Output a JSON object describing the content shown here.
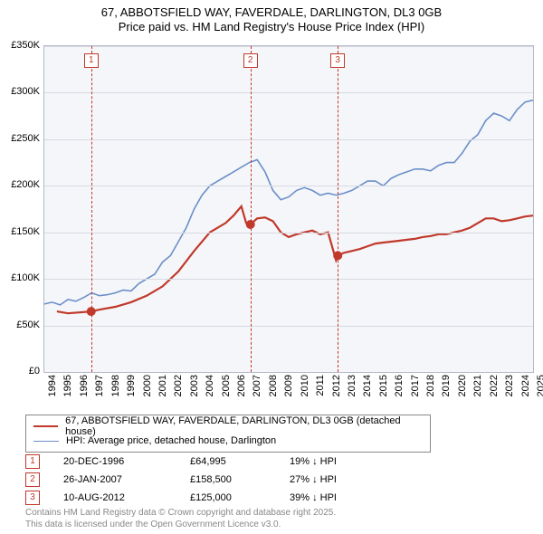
{
  "title": {
    "line1": "67, ABBOTSFIELD WAY, FAVERDALE, DARLINGTON, DL3 0GB",
    "line2": "Price paid vs. HM Land Registry's House Price Index (HPI)"
  },
  "chart": {
    "type": "line",
    "background_color": "#f5f6f9",
    "grid_color": "#d7dae2",
    "border_color": "#b5b9c8",
    "xlim": [
      1994,
      2025
    ],
    "ylim": [
      0,
      350000
    ],
    "ytick_step": 50000,
    "yticks": [
      "£0",
      "£50K",
      "£100K",
      "£150K",
      "£200K",
      "£250K",
      "£300K",
      "£350K"
    ],
    "xticks": [
      "1994",
      "1995",
      "1996",
      "1997",
      "1998",
      "1999",
      "2000",
      "2001",
      "2002",
      "2003",
      "2004",
      "2005",
      "2006",
      "2007",
      "2008",
      "2009",
      "2010",
      "2011",
      "2012",
      "2013",
      "2014",
      "2015",
      "2016",
      "2017",
      "2018",
      "2019",
      "2020",
      "2021",
      "2022",
      "2023",
      "2024",
      "2025"
    ],
    "label_fontsize": 11,
    "series": [
      {
        "name": "price-paid",
        "label": "67, ABBOTSFIELD WAY, FAVERDALE, DARLINGTON, DL3 0GB (detached house)",
        "color": "#c0392b",
        "line_width": 2.2,
        "marker_color": "#c0392b",
        "marker_size": 5,
        "data": [
          [
            1994.8,
            65000
          ],
          [
            1995.5,
            63000
          ],
          [
            1996.97,
            64995
          ],
          [
            1997.5,
            67000
          ],
          [
            1998.5,
            70000
          ],
          [
            1999.5,
            75000
          ],
          [
            2000.5,
            82000
          ],
          [
            2001.5,
            92000
          ],
          [
            2002.5,
            108000
          ],
          [
            2003.5,
            130000
          ],
          [
            2004.5,
            150000
          ],
          [
            2005.5,
            160000
          ],
          [
            2006.0,
            168000
          ],
          [
            2006.5,
            178000
          ],
          [
            2006.8,
            160000
          ],
          [
            2007.07,
            158500
          ],
          [
            2007.5,
            165000
          ],
          [
            2008.0,
            166000
          ],
          [
            2008.5,
            162000
          ],
          [
            2009.0,
            150000
          ],
          [
            2009.5,
            145000
          ],
          [
            2010.0,
            148000
          ],
          [
            2010.5,
            150000
          ],
          [
            2011.0,
            152000
          ],
          [
            2011.5,
            148000
          ],
          [
            2012.0,
            150000
          ],
          [
            2012.5,
            120000
          ],
          [
            2012.61,
            125000
          ],
          [
            2013.0,
            128000
          ],
          [
            2013.5,
            130000
          ],
          [
            2014.0,
            132000
          ],
          [
            2014.5,
            135000
          ],
          [
            2015.0,
            138000
          ],
          [
            2015.5,
            139000
          ],
          [
            2016.0,
            140000
          ],
          [
            2016.5,
            141000
          ],
          [
            2017.0,
            142000
          ],
          [
            2017.5,
            143000
          ],
          [
            2018.0,
            145000
          ],
          [
            2018.5,
            146000
          ],
          [
            2019.0,
            148000
          ],
          [
            2019.5,
            148000
          ],
          [
            2020.0,
            150000
          ],
          [
            2020.5,
            152000
          ],
          [
            2021.0,
            155000
          ],
          [
            2021.5,
            160000
          ],
          [
            2022.0,
            165000
          ],
          [
            2022.5,
            165000
          ],
          [
            2023.0,
            162000
          ],
          [
            2023.5,
            163000
          ],
          [
            2024.0,
            165000
          ],
          [
            2024.5,
            167000
          ],
          [
            2025.0,
            168000
          ]
        ],
        "markers_at": [
          [
            1996.97,
            64995
          ],
          [
            2007.07,
            158500
          ],
          [
            2012.61,
            125000
          ]
        ]
      },
      {
        "name": "hpi",
        "label": "HPI: Average price, detached house, Darlington",
        "color": "#6b8fc9",
        "line_width": 1.6,
        "data": [
          [
            1994.0,
            73000
          ],
          [
            1994.5,
            75000
          ],
          [
            1995.0,
            72000
          ],
          [
            1995.5,
            78000
          ],
          [
            1996.0,
            76000
          ],
          [
            1996.5,
            80000
          ],
          [
            1997.0,
            85000
          ],
          [
            1997.5,
            82000
          ],
          [
            1998.0,
            83000
          ],
          [
            1998.5,
            85000
          ],
          [
            1999.0,
            88000
          ],
          [
            1999.5,
            87000
          ],
          [
            2000.0,
            95000
          ],
          [
            2000.5,
            100000
          ],
          [
            2001.0,
            105000
          ],
          [
            2001.5,
            118000
          ],
          [
            2002.0,
            125000
          ],
          [
            2002.5,
            140000
          ],
          [
            2003.0,
            155000
          ],
          [
            2003.5,
            175000
          ],
          [
            2004.0,
            190000
          ],
          [
            2004.5,
            200000
          ],
          [
            2005.0,
            205000
          ],
          [
            2005.5,
            210000
          ],
          [
            2006.0,
            215000
          ],
          [
            2006.5,
            220000
          ],
          [
            2007.0,
            225000
          ],
          [
            2007.5,
            228000
          ],
          [
            2008.0,
            215000
          ],
          [
            2008.5,
            195000
          ],
          [
            2009.0,
            185000
          ],
          [
            2009.5,
            188000
          ],
          [
            2010.0,
            195000
          ],
          [
            2010.5,
            198000
          ],
          [
            2011.0,
            195000
          ],
          [
            2011.5,
            190000
          ],
          [
            2012.0,
            192000
          ],
          [
            2012.5,
            190000
          ],
          [
            2013.0,
            192000
          ],
          [
            2013.5,
            195000
          ],
          [
            2014.0,
            200000
          ],
          [
            2014.5,
            205000
          ],
          [
            2015.0,
            205000
          ],
          [
            2015.5,
            200000
          ],
          [
            2016.0,
            208000
          ],
          [
            2016.5,
            212000
          ],
          [
            2017.0,
            215000
          ],
          [
            2017.5,
            218000
          ],
          [
            2018.0,
            218000
          ],
          [
            2018.5,
            216000
          ],
          [
            2019.0,
            222000
          ],
          [
            2019.5,
            225000
          ],
          [
            2020.0,
            225000
          ],
          [
            2020.5,
            235000
          ],
          [
            2021.0,
            248000
          ],
          [
            2021.5,
            255000
          ],
          [
            2022.0,
            270000
          ],
          [
            2022.5,
            278000
          ],
          [
            2023.0,
            275000
          ],
          [
            2023.5,
            270000
          ],
          [
            2024.0,
            282000
          ],
          [
            2024.5,
            290000
          ],
          [
            2025.0,
            292000
          ]
        ]
      }
    ],
    "events": [
      {
        "n": "1",
        "x": 1996.97,
        "date": "20-DEC-1996",
        "price": "£64,995",
        "hpi_delta": "19% ↓ HPI"
      },
      {
        "n": "2",
        "x": 2007.07,
        "date": "26-JAN-2007",
        "price": "£158,500",
        "hpi_delta": "27% ↓ HPI"
      },
      {
        "n": "3",
        "x": 2012.61,
        "date": "10-AUG-2012",
        "price": "£125,000",
        "hpi_delta": "39% ↓ HPI"
      }
    ]
  },
  "legend": {
    "series0_label": "67, ABBOTSFIELD WAY, FAVERDALE, DARLINGTON, DL3 0GB (detached house)",
    "series1_label": "HPI: Average price, detached house, Darlington"
  },
  "footer": {
    "line1": "Contains HM Land Registry data © Crown copyright and database right 2025.",
    "line2": "This data is licensed under the Open Government Licence v3.0."
  }
}
